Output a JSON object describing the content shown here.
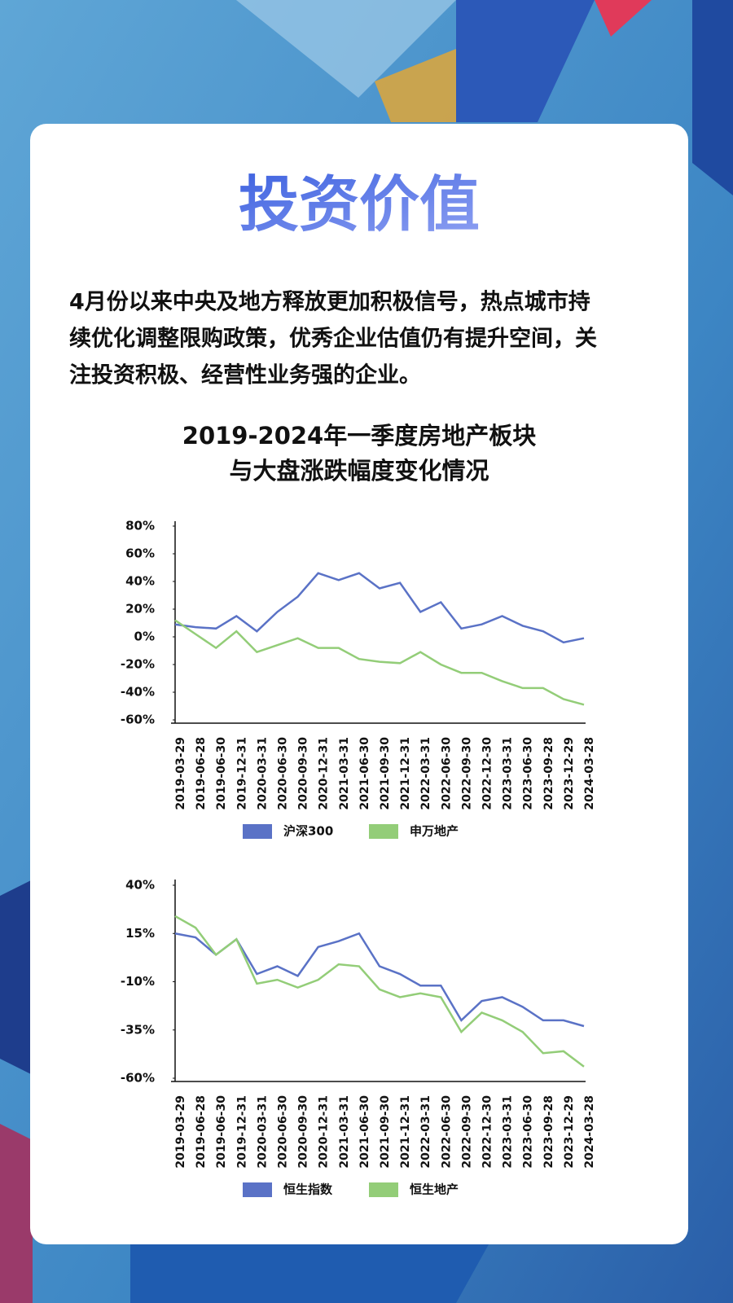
{
  "header": {
    "title": "投资价值",
    "body_lines": [
      "4月份以来中央及地方释放更加积极信号，热点城市持",
      "续优化调整限购政策，优秀企业估值仍有提升空间，关",
      "注投资积极、经营性业务强的企业。"
    ]
  },
  "section_title": [
    "2019-2024年一季度房地产板块",
    "与大盘涨跌幅度变化情况"
  ],
  "chart_data": [
    {
      "type": "line",
      "categories": [
        "2019-03-29",
        "2019-06-28",
        "2019-06-30",
        "2019-12-31",
        "2020-03-31",
        "2020-06-30",
        "2020-09-30",
        "2020-12-31",
        "2021-03-31",
        "2021-06-30",
        "2021-09-30",
        "2021-12-31",
        "2022-03-31",
        "2022-06-30",
        "2022-09-30",
        "2022-12-30",
        "2023-03-31",
        "2023-06-30",
        "2023-09-28",
        "2023-12-29",
        "2024-03-28"
      ],
      "ylim": [
        -60,
        80
      ],
      "yticks": [
        {
          "value": -60,
          "label": "-60%"
        },
        {
          "value": -40,
          "label": "-40%"
        },
        {
          "value": -20,
          "label": "-20%"
        },
        {
          "value": 0,
          "label": "0%"
        },
        {
          "value": 20,
          "label": "20%"
        },
        {
          "value": 40,
          "label": "40%"
        },
        {
          "value": 60,
          "label": "60%"
        },
        {
          "value": 80,
          "label": "80%"
        }
      ],
      "series": [
        {
          "name": "沪深300",
          "color": "#5a72c6",
          "values": [
            9,
            7,
            6,
            15,
            4,
            18,
            29,
            46,
            41,
            46,
            35,
            39,
            18,
            25,
            6,
            9,
            15,
            8,
            4,
            -4,
            -1
          ]
        },
        {
          "name": "申万地产",
          "color": "#93cd78",
          "values": [
            12,
            2,
            -8,
            4,
            -11,
            -6,
            -1,
            -8,
            -8,
            -16,
            -18,
            -19,
            -11,
            -20,
            -26,
            -26,
            -32,
            -37,
            -37,
            -45,
            -49
          ]
        }
      ]
    },
    {
      "type": "line",
      "categories": [
        "2019-03-29",
        "2019-06-28",
        "2019-06-30",
        "2019-12-31",
        "2020-03-31",
        "2020-06-30",
        "2020-09-30",
        "2020-12-31",
        "2021-03-31",
        "2021-06-30",
        "2021-09-30",
        "2021-12-31",
        "2022-03-31",
        "2022-06-30",
        "2022-09-30",
        "2022-12-30",
        "2023-03-31",
        "2023-06-30",
        "2023-09-28",
        "2023-12-29",
        "2024-03-28"
      ],
      "ylim": [
        -60,
        40
      ],
      "yticks": [
        {
          "value": -60,
          "label": "-60%"
        },
        {
          "value": -35,
          "label": "-35%"
        },
        {
          "value": -10,
          "label": "-10%"
        },
        {
          "value": 15,
          "label": "15%"
        },
        {
          "value": 40,
          "label": "40%"
        }
      ],
      "series": [
        {
          "name": "恒生指数",
          "color": "#5a72c6",
          "values": [
            15,
            13,
            4,
            12,
            -6,
            -2,
            -7,
            8,
            11,
            15,
            -2,
            -6,
            -12,
            -12,
            -30,
            -20,
            -18,
            -23,
            -30,
            -30,
            -33
          ]
        },
        {
          "name": "恒生地产",
          "color": "#93cd78",
          "values": [
            24,
            18,
            4,
            12,
            -11,
            -9,
            -13,
            -9,
            -1,
            -2,
            -14,
            -18,
            -16,
            -18,
            -36,
            -26,
            -30,
            -36,
            -47,
            -46,
            -54
          ]
        }
      ]
    }
  ]
}
